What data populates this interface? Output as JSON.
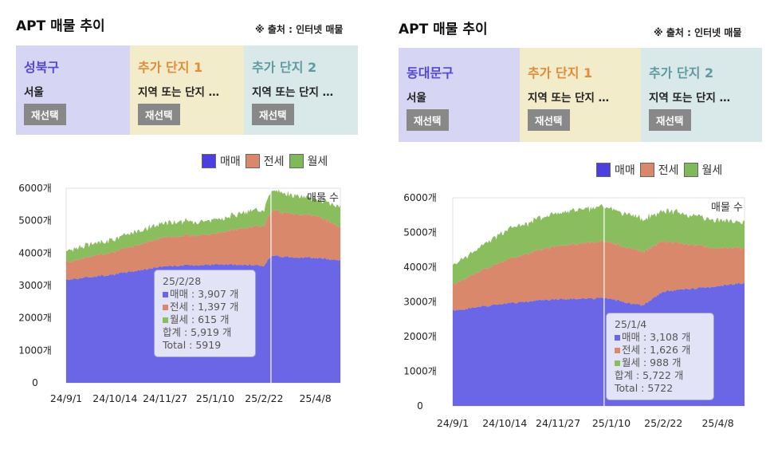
{
  "colors": {
    "trade": "#6b66e5",
    "jeonse": "#d9886b",
    "wolse": "#89bd5e",
    "legend_trade": "#4b3fe0",
    "legend_jeonse": "#d9886b",
    "legend_wolse": "#80b95a"
  },
  "left": {
    "title": "APT 매물 추이",
    "source": "※ 출처 : 인터넷 매물",
    "cards": [
      {
        "name": "성북구",
        "sub": "서울",
        "button": "재선택"
      },
      {
        "name": "추가 단지 1",
        "sub": "지역 또는 단지 …",
        "button": "재선택"
      },
      {
        "name": "추가 단지 2",
        "sub": "지역 또는 단지 …",
        "button": "재선택"
      }
    ],
    "legend": [
      "매매",
      "전세",
      "월세"
    ],
    "tooltip": {
      "date": "25/2/28",
      "trade": "매매 : 3,907 개",
      "jeonse": "전세 : 1,397 개",
      "wolse": "월세 : 615 개",
      "sum": "합계 : 5,919 개",
      "total": "Total : 5919"
    }
  },
  "right": {
    "title": "APT 매물 추이",
    "source": "※ 출처 : 인터넷 매물",
    "cards": [
      {
        "name": "동대문구",
        "sub": "서울",
        "button": "재선택"
      },
      {
        "name": "추가 단지 1",
        "sub": "지역 또는 단지 …",
        "button": "재선택"
      },
      {
        "name": "추가 단지 2",
        "sub": "지역 또는 단지 …",
        "button": "재선택"
      }
    ],
    "legend": [
      "매매",
      "전세",
      "월세"
    ],
    "tooltip": {
      "date": "25/1/4",
      "trade": "매매 : 3,108 개",
      "jeonse": "전세 : 1,626 개",
      "wolse": "월세 : 988 개",
      "sum": "합계 : 5,722 개",
      "total": "Total : 5722"
    }
  },
  "chart_data": [
    {
      "type": "area",
      "stacked": true,
      "annotation": "매물 수",
      "x_ticks": [
        "24/9/1",
        "24/10/14",
        "24/11/27",
        "25/1/10",
        "25/2/22",
        "25/4/8"
      ],
      "y_ticks": [
        "0",
        "1000개",
        "2000개",
        "3000개",
        "4000개",
        "5000개",
        "6000개"
      ],
      "ylim": [
        0,
        6000
      ],
      "hover_x": "25/2/28",
      "x": [
        "24/9/1",
        "24/10/14",
        "24/11/27",
        "25/1/10",
        "25/2/22",
        "25/2/28",
        "25/4/8",
        "25/4/30"
      ],
      "series": [
        {
          "name": "매매",
          "values": [
            3180,
            3350,
            3600,
            3650,
            3620,
            3907,
            3850,
            3780
          ]
        },
        {
          "name": "전세",
          "values": [
            550,
            700,
            900,
            950,
            1250,
            1397,
            1300,
            1050
          ]
        },
        {
          "name": "월세",
          "values": [
            350,
            400,
            450,
            420,
            520,
            615,
            520,
            600
          ]
        }
      ]
    },
    {
      "type": "area",
      "stacked": true,
      "annotation": "매물 수",
      "x_ticks": [
        "24/9/1",
        "24/10/14",
        "24/11/27",
        "25/1/10",
        "25/2/22",
        "25/4/8"
      ],
      "y_ticks": [
        "0",
        "1000개",
        "2000개",
        "3000개",
        "4000개",
        "5000개",
        "6000개"
      ],
      "ylim": [
        0,
        6000
      ],
      "hover_x": "25/1/4",
      "x": [
        "24/9/1",
        "24/10/14",
        "24/11/27",
        "25/1/4",
        "25/2/5",
        "25/2/22",
        "25/4/8",
        "25/4/30"
      ],
      "series": [
        {
          "name": "매매",
          "values": [
            2750,
            2950,
            3080,
            3108,
            2900,
            3300,
            3450,
            3550
          ]
        },
        {
          "name": "전세",
          "values": [
            750,
            1250,
            1550,
            1626,
            1550,
            1450,
            1100,
            1000
          ]
        },
        {
          "name": "월세",
          "values": [
            550,
            850,
            950,
            988,
            950,
            900,
            800,
            750
          ]
        }
      ]
    }
  ]
}
